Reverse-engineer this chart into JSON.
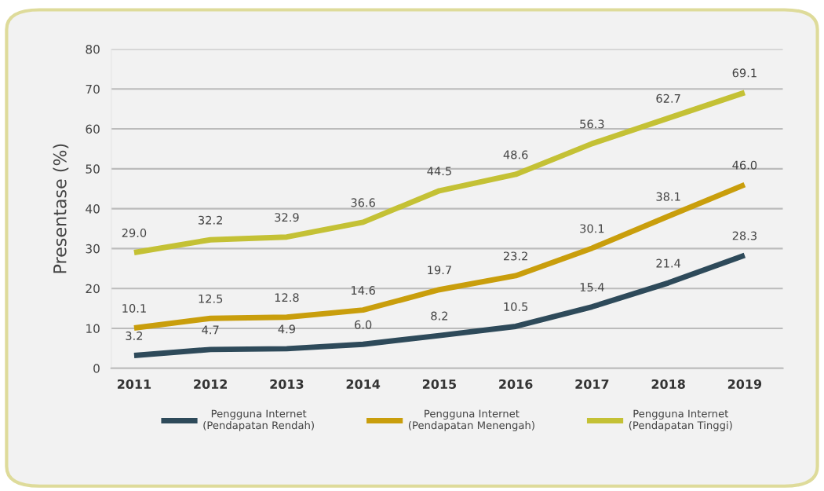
{
  "chart_data": {
    "type": "line",
    "ylabel": "Presentase (%)",
    "categories": [
      "2011",
      "2012",
      "2013",
      "2014",
      "2015",
      "2016",
      "2017",
      "2018",
      "2019"
    ],
    "series": [
      {
        "name": "Pengguna Internet\n(Pendapatan Rendah)",
        "color": "#2e4a5a",
        "values": [
          3.2,
          4.7,
          4.9,
          6.0,
          8.2,
          10.5,
          15.4,
          21.4,
          28.3
        ],
        "value_labels": [
          "3.2",
          "4.7",
          "4.9",
          "6.0",
          "8.2",
          "10.5",
          "15.4",
          "21.4",
          "28.3"
        ]
      },
      {
        "name": "Pengguna Internet\n(Pendapatan Menengah)",
        "color": "#c99e0c",
        "values": [
          10.1,
          12.5,
          12.8,
          14.6,
          19.7,
          23.2,
          30.1,
          38.1,
          46.0
        ],
        "value_labels": [
          "10.1",
          "12.5",
          "12.8",
          "14.6",
          "19.7",
          "23.2",
          "30.1",
          "38.1",
          "46.0"
        ]
      },
      {
        "name": "Pengguna Internet\n(Pendapatan Tinggi)",
        "color": "#c4c135",
        "values": [
          29.0,
          32.2,
          32.9,
          36.6,
          44.5,
          48.6,
          56.3,
          62.7,
          69.1
        ],
        "value_labels": [
          "29.0",
          "32.2",
          "32.9",
          "36.6",
          "44.5",
          "48.6",
          "56.3",
          "62.7",
          "69.1"
        ]
      }
    ],
    "ylim": [
      0,
      80
    ],
    "yticks": [
      0,
      10,
      20,
      30,
      40,
      50,
      60,
      70,
      80
    ],
    "grid": "y",
    "legend": "bottom",
    "marker": "none",
    "line_style": "solid"
  }
}
